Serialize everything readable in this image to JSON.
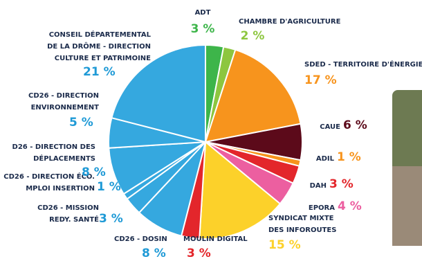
{
  "chart_data": {
    "type": "pie",
    "categories": [
      "ADT",
      "CHAMBRE D'AGRICULTURE",
      "SDED - TERRITOIRE D'ÉNERGIE",
      "CAUE",
      "ADIL",
      "DAH",
      "EPORA",
      "SYNDICAT MIXTE\nDES INFOROUTES",
      "MOULIN DIGITAL",
      "CD26 - DOSIN",
      "CD26 - MISSION\nREDY. SANTÉ",
      "CD26 - DIRECTION ÉCO.\nMPLOI INSERTION",
      "D26 - DIRECTION DES\nDÉPLACEMENTS",
      "CD26 - DIRECTION\nENVIRONNEMENT",
      "CONSEIL DÉPARTEMENTAL\nDE LA DRÔME - DIRECTION\nCULTURE ET PATRIMOINE"
    ],
    "values": [
      3,
      2,
      17,
      6,
      1,
      3,
      4,
      15,
      3,
      8,
      3,
      1,
      8,
      5,
      21
    ],
    "value_labels": [
      "3 %",
      "2 %",
      "17 %",
      "6 %",
      "1 %",
      "3 %",
      "4 %",
      "15 %",
      "3 %",
      "8 %",
      "3 %",
      "1 %",
      "8 %",
      "5 %",
      "21 %"
    ],
    "colors": [
      "#3db54a",
      "#8dc63f",
      "#f7941d",
      "#5c0a1a",
      "#f7941d",
      "#e3262b",
      "#ec5fa0",
      "#fcd12a",
      "#e3262b",
      "#35a8df",
      "#35a8df",
      "#35a8df",
      "#35a8df",
      "#35a8df",
      "#35a8df"
    ]
  }
}
